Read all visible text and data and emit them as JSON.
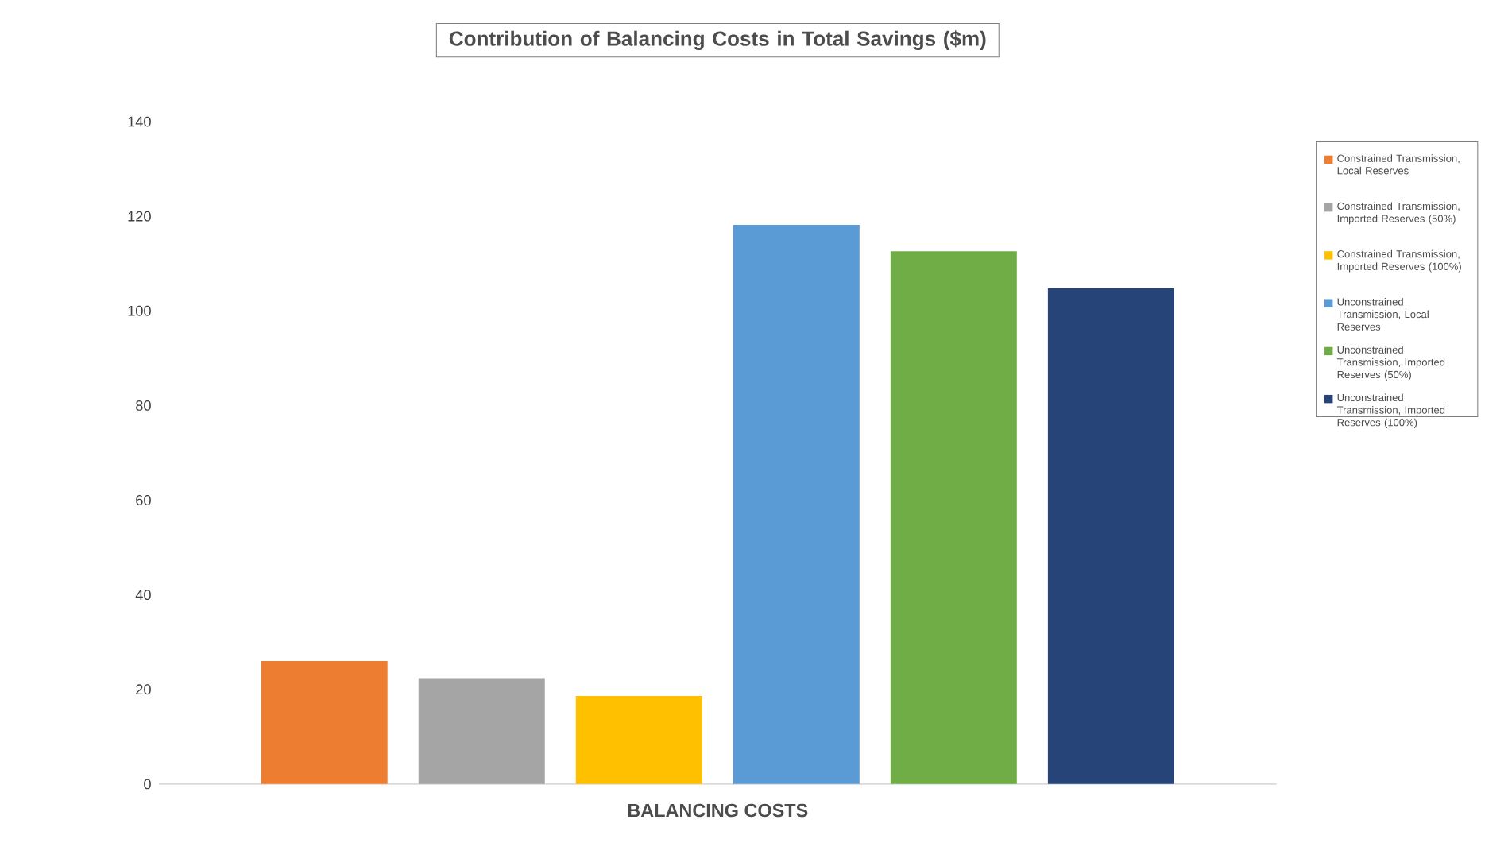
{
  "chart_data": {
    "type": "bar",
    "title": "Contribution of Balancing Costs in Total Savings ($m)",
    "categories": [
      "BALANCING COSTS"
    ],
    "series": [
      {
        "name": "Constrained Transmission, Local Reserves",
        "color": "#ed7d31",
        "values": [
          26
        ]
      },
      {
        "name": "Constrained Transmission, Imported Reserves (50%)",
        "color": "#a5a5a5",
        "values": [
          22.4
        ]
      },
      {
        "name": "Constrained Transmission, Imported Reserves (100%)",
        "color": "#ffc000",
        "values": [
          18.6
        ]
      },
      {
        "name": "Unconstrained Transmission, Local Reserves",
        "color": "#5b9bd5",
        "values": [
          118.2
        ]
      },
      {
        "name": "Unconstrained Transmission, Imported Reserves (50%)",
        "color": "#70ad47",
        "values": [
          112.6
        ]
      },
      {
        "name": "Unconstrained Transmission, Imported Reserves (100%)",
        "color": "#264478",
        "values": [
          104.8
        ]
      }
    ],
    "ylim": [
      0,
      140
    ],
    "yticks": [
      0,
      20,
      40,
      60,
      80,
      100,
      120,
      140
    ],
    "grid": false,
    "legend": "right"
  }
}
